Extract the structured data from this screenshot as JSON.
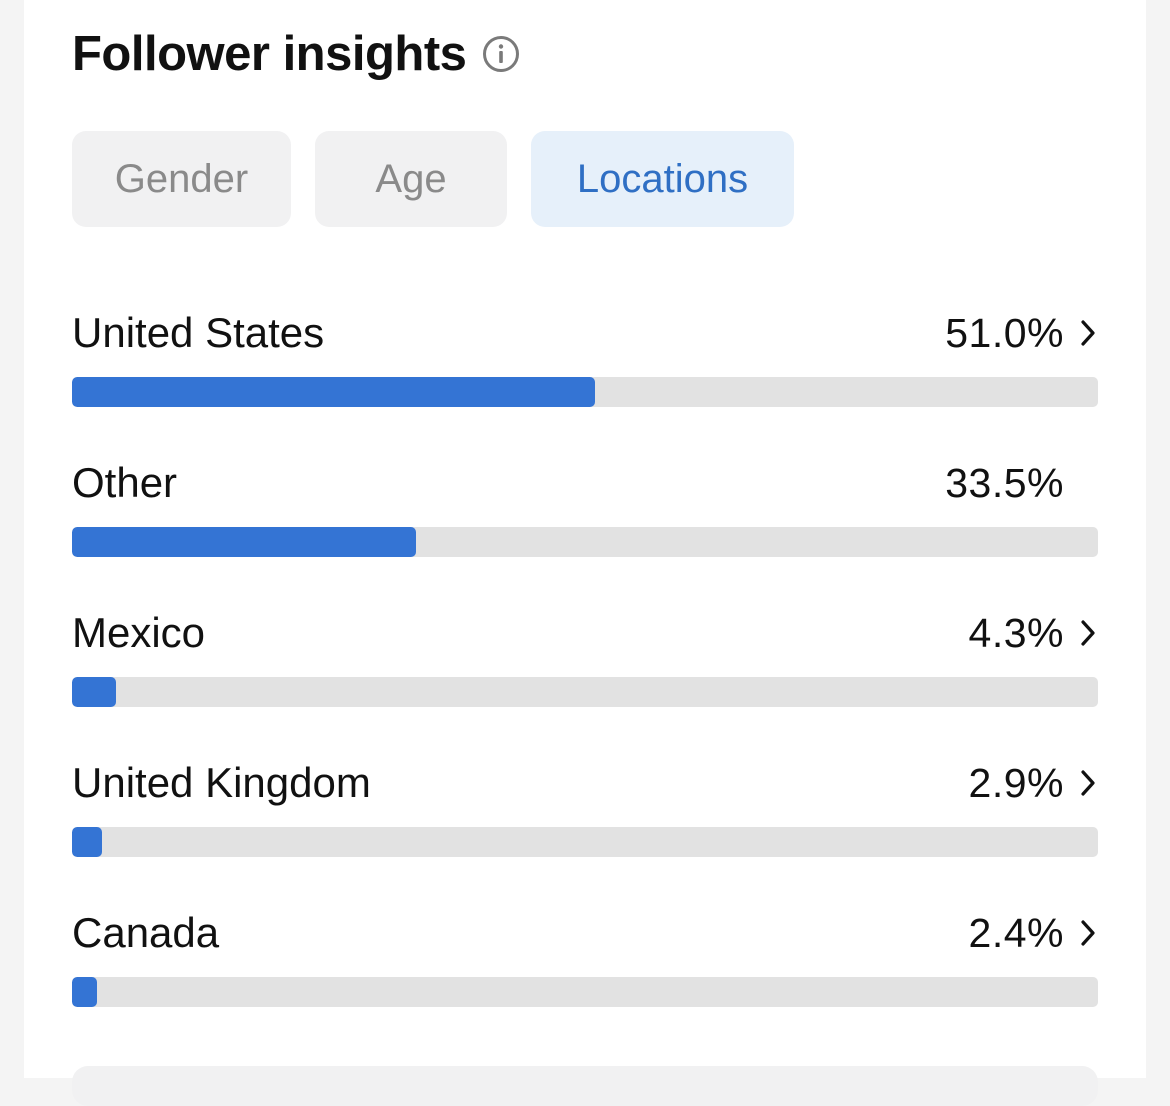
{
  "header": {
    "title": "Follower insights",
    "info_icon": "info-icon"
  },
  "tabs": [
    {
      "label": "Gender",
      "active": false
    },
    {
      "label": "Age",
      "active": false
    },
    {
      "label": "Locations",
      "active": true
    }
  ],
  "locations": [
    {
      "name": "United States",
      "value": "51.0%",
      "percent": 51.0,
      "has_chevron": true
    },
    {
      "name": "Other",
      "value": "33.5%",
      "percent": 33.5,
      "has_chevron": false
    },
    {
      "name": "Mexico",
      "value": "4.3%",
      "percent": 4.3,
      "has_chevron": true
    },
    {
      "name": "United Kingdom",
      "value": "2.9%",
      "percent": 2.9,
      "has_chevron": true
    },
    {
      "name": "Canada",
      "value": "2.4%",
      "percent": 2.4,
      "has_chevron": true
    }
  ],
  "colors": {
    "accent": "#3474d4",
    "track": "#e2e2e2",
    "active_tab_bg": "#e6f0fa",
    "active_tab_text": "#2f6fc4",
    "inactive_tab_bg": "#f1f1f2",
    "inactive_tab_text": "#8a8a8a"
  }
}
